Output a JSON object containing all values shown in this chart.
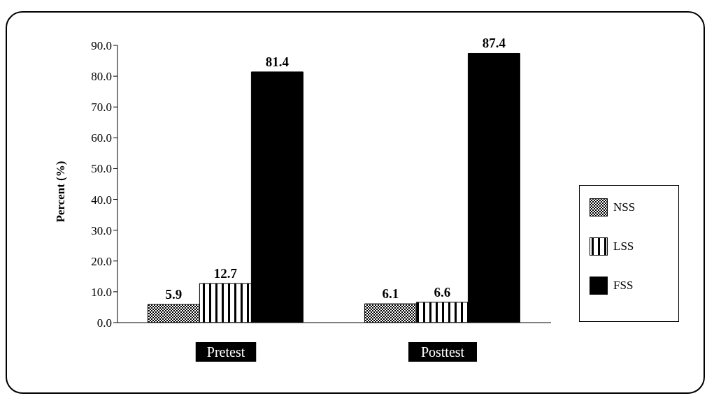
{
  "chart_data": {
    "type": "bar",
    "ylabel": "Percent (%)",
    "categories": [
      "Pretest",
      "Posttest"
    ],
    "series": [
      {
        "name": "NSS",
        "color": "#000000",
        "values": [
          5.9,
          6.1
        ]
      },
      {
        "name": "LSS",
        "color": "#000000",
        "values": [
          12.7,
          6.6
        ]
      },
      {
        "name": "FSS",
        "color": "#000000",
        "values": [
          81.4,
          87.4
        ]
      }
    ],
    "ylim": [
      0,
      90
    ],
    "yticks": [
      {
        "value": 0,
        "label": "0.0"
      },
      {
        "value": 10,
        "label": "10.0"
      },
      {
        "value": 20,
        "label": "20.0"
      },
      {
        "value": 30,
        "label": "30.0"
      },
      {
        "value": 40,
        "label": "40.0"
      },
      {
        "value": 50,
        "label": "50.0"
      },
      {
        "value": 60,
        "label": "60.0"
      },
      {
        "value": 70,
        "label": "70.0"
      },
      {
        "value": 80,
        "label": "80.0"
      },
      {
        "value": 90,
        "label": "90.0"
      }
    ],
    "data_labels": true,
    "grid": false,
    "legend": "right"
  }
}
